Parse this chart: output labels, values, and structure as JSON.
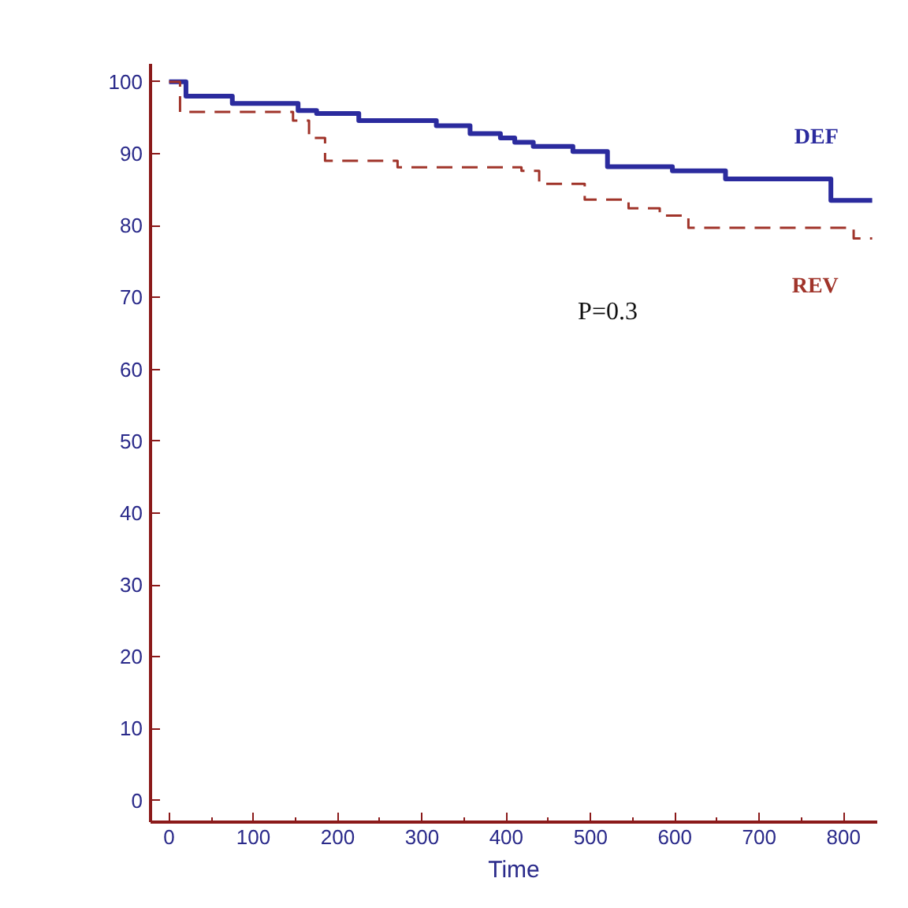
{
  "chart_data": {
    "type": "step",
    "xlabel": "Time",
    "series": [
      {
        "name": "DEF",
        "color": "#2b2b9e",
        "line_style": "solid",
        "x": [
          0,
          20,
          75,
          153,
          175,
          225,
          317,
          357,
          393,
          410,
          432,
          479,
          520,
          597,
          660,
          785,
          834
        ],
        "values": [
          100,
          98,
          97,
          96,
          95.6,
          94.6,
          93.9,
          92.8,
          92.2,
          91.6,
          91,
          90.3,
          88.2,
          87.6,
          86.5,
          83.5,
          83.5
        ]
      },
      {
        "name": "REV",
        "color": "#a0342a",
        "line_style": "dashed",
        "x": [
          0,
          13,
          147,
          166,
          185,
          271,
          418,
          439,
          493,
          545,
          582,
          616,
          812,
          834
        ],
        "values": [
          100,
          95.8,
          94.6,
          92.2,
          89,
          88.1,
          87.6,
          85.8,
          83.6,
          82.4,
          81.4,
          79.7,
          78.2,
          78.2
        ]
      }
    ],
    "annotations": [
      "P=0.3"
    ],
    "xlim": [
      -22,
      840
    ],
    "ylim": [
      -3,
      102.5
    ],
    "xticks": [
      0,
      100,
      200,
      300,
      400,
      500,
      600,
      700,
      800
    ],
    "yticks": [
      0,
      10,
      20,
      30,
      40,
      50,
      60,
      70,
      80,
      90,
      100
    ],
    "grid": false
  }
}
